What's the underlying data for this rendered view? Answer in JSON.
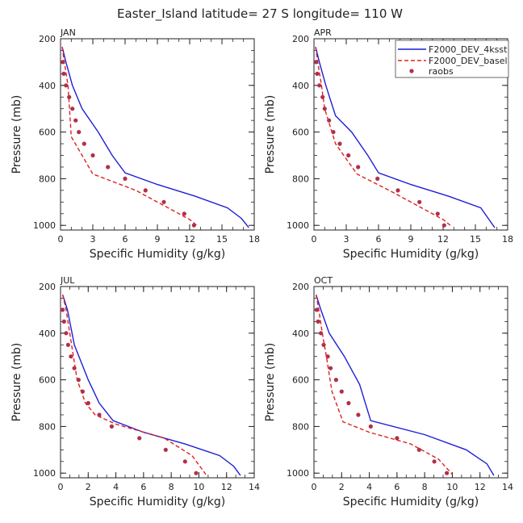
{
  "title": "Easter_Island  latitude= 27 S longitude= 110 W",
  "legend": {
    "entries": [
      {
        "label": "F2000_DEV_4ksst",
        "color": "#1f1fd6",
        "style": "solid"
      },
      {
        "label": "F2000_DEV_basel",
        "color": "#e02020",
        "style": "dashed"
      },
      {
        "label": "raobs",
        "color": "#b0304a",
        "style": "marker"
      }
    ]
  },
  "chart_data": [
    {
      "type": "line",
      "panel_label": "JAN",
      "xlabel": "Specific Humidity (g/kg)",
      "ylabel": "Pressure (mb)",
      "xlim": [
        0,
        18
      ],
      "ylim": [
        1020,
        200
      ],
      "xticks": [
        0,
        3,
        6,
        9,
        12,
        15,
        18
      ],
      "yticks": [
        200,
        400,
        600,
        800,
        1000
      ],
      "series": [
        {
          "name": "F2000_DEV_4ksst",
          "x": [
            0.15,
            0.5,
            1.1,
            2.0,
            3.5,
            4.8,
            6.0,
            9.0,
            12.5,
            15.5,
            16.8,
            17.5
          ],
          "y": [
            235,
            300,
            400,
            500,
            600,
            700,
            775,
            825,
            875,
            925,
            970,
            1010
          ]
        },
        {
          "name": "F2000_DEV_basel",
          "x": [
            0.15,
            0.35,
            0.7,
            1.0,
            2.0,
            3.0,
            7.0,
            10.0,
            12.0,
            12.8
          ],
          "y": [
            235,
            300,
            400,
            620,
            700,
            780,
            850,
            925,
            975,
            1005
          ]
        },
        {
          "name": "raobs",
          "x": [
            0.2,
            0.3,
            0.5,
            0.8,
            1.1,
            1.4,
            1.7,
            2.2,
            3.0,
            4.4,
            6.0,
            7.9,
            9.6,
            11.5,
            12.4
          ],
          "y": [
            300,
            350,
            400,
            450,
            500,
            550,
            600,
            650,
            700,
            750,
            800,
            850,
            900,
            950,
            1000
          ]
        }
      ]
    },
    {
      "type": "line",
      "panel_label": "APR",
      "xlabel": "Specific Humidity (g/kg)",
      "ylabel": "Pressure (mb)",
      "xlim": [
        0,
        18
      ],
      "ylim": [
        1020,
        200
      ],
      "xticks": [
        0,
        3,
        6,
        9,
        12,
        15,
        18
      ],
      "yticks": [
        200,
        400,
        600,
        800,
        1000
      ],
      "series": [
        {
          "name": "F2000_DEV_4ksst",
          "x": [
            0.15,
            0.5,
            1.1,
            2.0,
            3.5,
            5.0,
            6.0,
            9.0,
            12.5,
            15.5,
            16.8
          ],
          "y": [
            235,
            300,
            400,
            530,
            600,
            700,
            775,
            825,
            875,
            925,
            1010
          ]
        },
        {
          "name": "F2000_DEV_basel",
          "x": [
            0.15,
            0.35,
            0.7,
            1.0,
            2.0,
            4.0,
            7.0,
            10.0,
            12.0,
            12.8
          ],
          "y": [
            235,
            300,
            400,
            500,
            650,
            780,
            850,
            925,
            975,
            1005
          ]
        },
        {
          "name": "raobs",
          "x": [
            0.2,
            0.3,
            0.5,
            0.8,
            1.0,
            1.4,
            1.8,
            2.4,
            3.2,
            4.1,
            5.9,
            7.8,
            9.8,
            11.5,
            12.1
          ],
          "y": [
            300,
            350,
            400,
            450,
            500,
            550,
            600,
            650,
            700,
            750,
            800,
            850,
            900,
            950,
            1000
          ]
        }
      ]
    },
    {
      "type": "line",
      "panel_label": "JUL",
      "xlabel": "Specific Humidity (g/kg)",
      "ylabel": "Pressure (mb)",
      "xlim": [
        0,
        14
      ],
      "ylim": [
        1020,
        200
      ],
      "xticks": [
        0,
        2,
        4,
        6,
        8,
        10,
        12,
        14
      ],
      "yticks": [
        200,
        400,
        600,
        800,
        1000
      ],
      "series": [
        {
          "name": "F2000_DEV_4ksst",
          "x": [
            0.15,
            0.5,
            1.0,
            2.0,
            2.8,
            3.8,
            6.0,
            9.0,
            11.5,
            12.5,
            13.0
          ],
          "y": [
            235,
            300,
            450,
            600,
            700,
            775,
            825,
            875,
            925,
            970,
            1010
          ]
        },
        {
          "name": "F2000_DEV_basel",
          "x": [
            0.15,
            0.4,
            0.8,
            1.2,
            1.8,
            2.5,
            4.0,
            7.5,
            9.5,
            10.5
          ],
          "y": [
            235,
            300,
            450,
            600,
            700,
            750,
            790,
            850,
            925,
            1005
          ]
        },
        {
          "name": "raobs",
          "x": [
            0.15,
            0.25,
            0.4,
            0.55,
            0.75,
            1.0,
            1.3,
            1.6,
            2.0,
            2.8,
            3.7,
            5.7,
            7.6,
            9.0,
            9.8
          ],
          "y": [
            300,
            350,
            400,
            450,
            500,
            550,
            600,
            650,
            700,
            750,
            800,
            850,
            900,
            950,
            1000
          ]
        }
      ]
    },
    {
      "type": "line",
      "panel_label": "OCT",
      "xlabel": "Specific Humidity (g/kg)",
      "ylabel": "Pressure (mb)",
      "xlim": [
        0,
        14
      ],
      "ylim": [
        1020,
        200
      ],
      "xticks": [
        0,
        2,
        4,
        6,
        8,
        10,
        12,
        14
      ],
      "yticks": [
        200,
        400,
        600,
        800,
        1000
      ],
      "series": [
        {
          "name": "F2000_DEV_4ksst",
          "x": [
            0.15,
            0.5,
            1.1,
            2.2,
            3.3,
            4.1,
            8.0,
            11.0,
            12.5,
            13.0
          ],
          "y": [
            235,
            300,
            400,
            500,
            620,
            775,
            835,
            900,
            960,
            1010
          ]
        },
        {
          "name": "F2000_DEV_basel",
          "x": [
            0.15,
            0.35,
            0.6,
            0.9,
            1.3,
            2.1,
            4.0,
            7.0,
            9.0,
            10.0
          ],
          "y": [
            235,
            300,
            400,
            500,
            650,
            780,
            825,
            875,
            940,
            1005
          ]
        },
        {
          "name": "raobs",
          "x": [
            0.2,
            0.3,
            0.5,
            0.7,
            1.0,
            1.2,
            1.6,
            2.0,
            2.5,
            3.2,
            4.1,
            6.0,
            7.6,
            8.7,
            9.6
          ],
          "y": [
            300,
            350,
            400,
            450,
            500,
            550,
            600,
            650,
            700,
            750,
            800,
            850,
            900,
            950,
            1000
          ]
        }
      ]
    }
  ]
}
